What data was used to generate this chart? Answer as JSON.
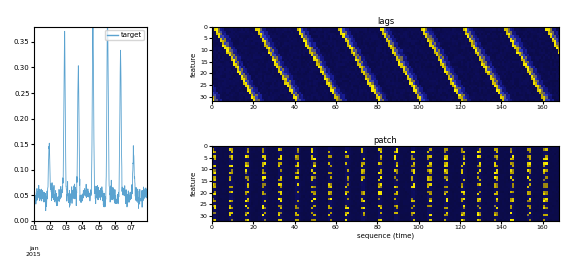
{
  "fig_width": 5.62,
  "fig_height": 2.66,
  "dpi": 100,
  "line_color": "#5ba3d0",
  "legend_label": "target",
  "left_ylim": [
    0.0,
    0.38
  ],
  "left_yticks": [
    0.0,
    0.05,
    0.1,
    0.15,
    0.2,
    0.25,
    0.3,
    0.35
  ],
  "left_xlabel_lines": [
    "01",
    "02",
    "03",
    "04",
    "05",
    "06",
    "07"
  ],
  "top_title": "lags",
  "bottom_title": "patch",
  "bottom_xlabel": "sequence (time)",
  "heatmap_ylabel": "feature",
  "heatmap_xticks": [
    0,
    20,
    40,
    60,
    80,
    100,
    120,
    140,
    160
  ],
  "heatmap_yticks": [
    0,
    5,
    10,
    15,
    20,
    25,
    30
  ],
  "n_seq": 168,
  "n_feat": 32,
  "lag_period": 20,
  "patch_period": 8,
  "seed": 42
}
